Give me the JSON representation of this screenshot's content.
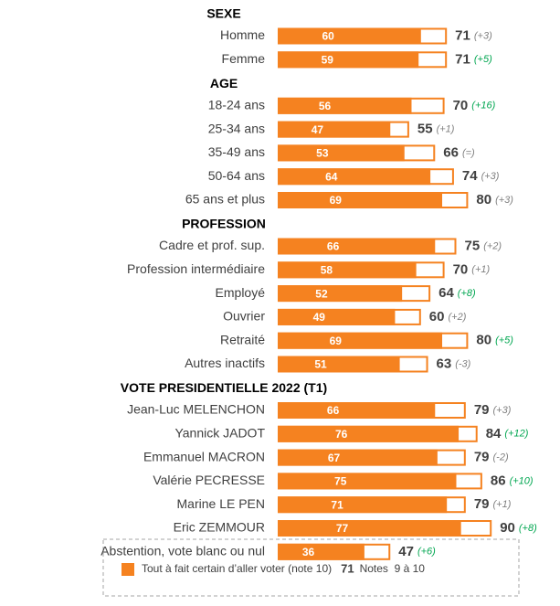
{
  "chart_data": {
    "type": "bar",
    "xlim": [
      0,
      100
    ],
    "bar_color": "#f58220",
    "groups": [
      {
        "title": "SEXE",
        "categories": [
          "Homme",
          "Femme"
        ],
        "values": [
          60,
          59
        ],
        "totals": [
          71,
          71
        ],
        "changes": [
          "(+3)",
          "(+5)"
        ],
        "change_colors": [
          "#7f7f7f",
          "#00a650"
        ]
      },
      {
        "title": "AGE",
        "categories": [
          "18-24 ans",
          "25-34 ans",
          "35-49 ans",
          "50-64 ans",
          "65 ans et plus"
        ],
        "values": [
          56,
          47,
          53,
          64,
          69
        ],
        "totals": [
          70,
          55,
          66,
          74,
          80
        ],
        "changes": [
          "(+16)",
          "(+1)",
          "(=)",
          "(+3)",
          "(+3)"
        ],
        "change_colors": [
          "#00a650",
          "#7f7f7f",
          "#7f7f7f",
          "#7f7f7f",
          "#7f7f7f"
        ]
      },
      {
        "title": "PROFESSION",
        "categories": [
          "Cadre et prof. sup.",
          "Profession intermédiaire",
          "Employé",
          "Ouvrier",
          "Retraité",
          "Autres inactifs"
        ],
        "values": [
          66,
          58,
          52,
          49,
          69,
          51
        ],
        "totals": [
          75,
          70,
          64,
          60,
          80,
          63
        ],
        "changes": [
          "(+2)",
          "(+1)",
          "(+8)",
          "(+2)",
          "(+5)",
          "(-3)"
        ],
        "change_colors": [
          "#7f7f7f",
          "#7f7f7f",
          "#00a650",
          "#7f7f7f",
          "#00a650",
          "#7f7f7f"
        ]
      },
      {
        "title": "VOTE PRESIDENTIELLE 2022 (T1)",
        "categories": [
          "Jean-Luc MELENCHON",
          "Yannick JADOT",
          "Emmanuel MACRON",
          "Valérie PECRESSE",
          "Marine LE PEN",
          "Eric ZEMMOUR",
          "Abstention, vote blanc ou nul"
        ],
        "values": [
          66,
          76,
          67,
          75,
          71,
          77,
          36
        ],
        "totals": [
          79,
          84,
          79,
          86,
          79,
          90,
          47
        ],
        "changes": [
          "(+3)",
          "(+12)",
          "(-2)",
          "(+10)",
          "(+1)",
          "(+8)",
          "(+6)"
        ],
        "change_colors": [
          "#7f7f7f",
          "#00a650",
          "#7f7f7f",
          "#00a650",
          "#7f7f7f",
          "#00a650",
          "#00a650"
        ]
      }
    ],
    "legend": {
      "series_name": "Tout à fait certain d’aller voter (note 10)",
      "sample": "71",
      "total_name": "Notes  9 à 10"
    }
  }
}
